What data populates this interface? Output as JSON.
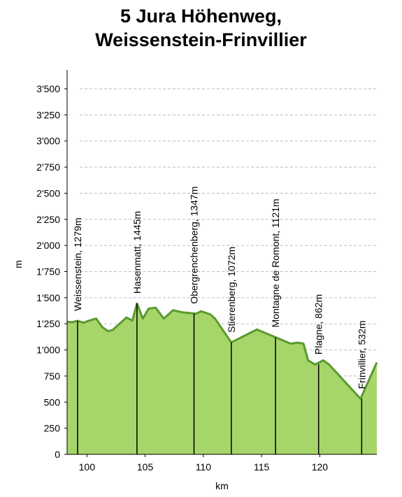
{
  "chart_data": {
    "type": "area",
    "title_line1": "5 Jura Höhenweg,",
    "title_line2": "Weissenstein-Frinvillier",
    "xlabel": "km",
    "ylabel": "m",
    "xlim": [
      98.3,
      124.9
    ],
    "ylim": [
      0,
      3500
    ],
    "xticks": [
      100,
      105,
      110,
      115,
      120
    ],
    "yticks": [
      0,
      250,
      500,
      750,
      1000,
      1250,
      1500,
      1750,
      2000,
      2250,
      2500,
      2750,
      3000,
      3250,
      3500
    ],
    "ytick_labels": [
      "0",
      "250",
      "500",
      "750",
      "1'000",
      "1'250",
      "1'500",
      "1'750",
      "2'000",
      "2'250",
      "2'500",
      "2'750",
      "3'000",
      "3'250",
      "3'500"
    ],
    "grid": true,
    "fill_color": "#a6d56a",
    "line_color": "#5a9a2e",
    "profile": {
      "x": [
        98.3,
        98.7,
        99.2,
        99.7,
        100.2,
        100.8,
        101.3,
        101.8,
        102.2,
        102.8,
        103.4,
        103.9,
        104.3,
        104.8,
        105.3,
        105.9,
        106.6,
        107.4,
        108.2,
        109.4,
        109.8,
        110.2,
        110.6,
        111.0,
        112.4,
        114.6,
        116.2,
        117.5,
        118.1,
        118.6,
        119.0,
        119.6,
        120.3,
        120.8,
        121.3,
        123.5,
        124.9
      ],
      "y": [
        1270,
        1265,
        1279,
        1260,
        1280,
        1300,
        1220,
        1180,
        1190,
        1250,
        1310,
        1280,
        1445,
        1300,
        1395,
        1405,
        1300,
        1380,
        1360,
        1347,
        1370,
        1355,
        1340,
        1300,
        1072,
        1195,
        1121,
        1060,
        1070,
        1060,
        900,
        860,
        900,
        860,
        800,
        532,
        880
      ]
    },
    "points": [
      {
        "label": "Weissenstein, 1279m",
        "x": 99.2,
        "y": 1279
      },
      {
        "label": "Hasenmatt, 1445m",
        "x": 104.3,
        "y": 1445
      },
      {
        "label": "Obergrenchenberg, 1347m",
        "x": 109.2,
        "y": 1347
      },
      {
        "label": "Stierenberg, 1072m",
        "x": 112.4,
        "y": 1072
      },
      {
        "label": "Montagne de Romont, 1121m",
        "x": 116.2,
        "y": 1121
      },
      {
        "label": "Plagne, 862m",
        "x": 119.9,
        "y": 862
      },
      {
        "label": "Frinvillier, 532m",
        "x": 123.6,
        "y": 532
      }
    ]
  }
}
